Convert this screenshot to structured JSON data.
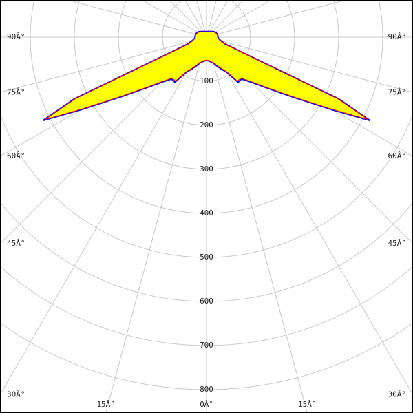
{
  "chart_data": {
    "type": "polar",
    "angles": [
      0,
      5,
      10,
      15,
      20,
      25,
      30,
      35,
      40,
      45,
      50,
      55,
      60,
      63,
      65,
      67,
      70,
      75,
      80,
      85,
      90,
      100,
      110,
      120,
      130,
      140,
      150,
      160,
      170,
      180
    ],
    "series": [
      {
        "color": "#0000ff",
        "values": [
          53,
          54,
          57,
          61,
          70,
          80,
          92,
          125,
          124,
          145,
          180,
          235,
          330,
          417,
          330,
          90,
          45,
          35,
          30,
          27,
          26,
          26,
          25,
          23,
          20,
          17,
          15,
          14,
          13,
          13
        ]
      },
      {
        "color": "#ff0000",
        "values": [
          52,
          53,
          56,
          60,
          68,
          78,
          90,
          122,
          121,
          142,
          177,
          232,
          326,
          412,
          325,
          88,
          44,
          34,
          29,
          26,
          25,
          25,
          24,
          22,
          19,
          16,
          14,
          13,
          12,
          12
        ]
      }
    ],
    "fill": "#ffff00",
    "rlim": [
      0,
      1000
    ],
    "rticks": [
      100,
      200,
      300,
      400,
      500,
      600,
      700,
      800
    ],
    "angle_ticks": [
      {
        "value": 90,
        "label": "90Â°"
      },
      {
        "value": 75,
        "label": "75Â°"
      },
      {
        "value": 60,
        "label": "60Â°"
      },
      {
        "value": 45,
        "label": "45Â°"
      },
      {
        "value": 30,
        "label": "30Â°"
      },
      {
        "value": 15,
        "label": "15Â°"
      },
      {
        "value": 0,
        "label": "0Â°"
      }
    ],
    "grid": true
  }
}
